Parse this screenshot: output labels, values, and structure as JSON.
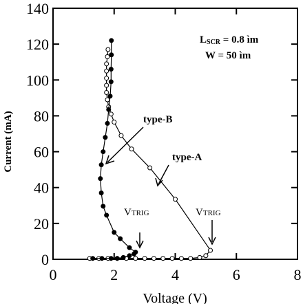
{
  "chart_data": {
    "type": "line",
    "xlabel": "Voltage (V)",
    "ylabel": "Current (mA)",
    "xlim": [
      0,
      8
    ],
    "xticks": [
      0,
      2,
      4,
      6,
      8
    ],
    "ylim": [
      0,
      140
    ],
    "yticks": [
      0,
      20,
      40,
      60,
      80,
      100,
      120,
      140
    ],
    "series": [
      {
        "name": "type-A",
        "color": "#000000",
        "marker": "open",
        "x": [
          1.2,
          1.5,
          1.8,
          2.1,
          2.4,
          2.7,
          3.0,
          3.3,
          3.6,
          3.9,
          4.2,
          4.5,
          4.8,
          5.0,
          5.15,
          4.0,
          3.17,
          2.57,
          2.23,
          2.0,
          1.9,
          1.82,
          1.78,
          1.75,
          1.75,
          1.75,
          1.75,
          1.75,
          1.78,
          1.8
        ],
        "values": [
          0.5,
          0.5,
          0.5,
          0.5,
          0.5,
          0.5,
          0.5,
          0.5,
          0.5,
          0.5,
          0.5,
          0.5,
          1,
          2,
          5,
          33.5,
          51,
          61.5,
          69,
          76.5,
          81,
          85,
          89,
          93,
          97,
          101,
          105,
          109,
          113,
          117
        ]
      },
      {
        "name": "type-B",
        "color": "#000000",
        "marker": "filled",
        "x": [
          1.3,
          1.6,
          1.9,
          2.1,
          2.3,
          2.5,
          2.65,
          2.7,
          2.5,
          2.2,
          2.0,
          1.75,
          1.64,
          1.58,
          1.55,
          1.58,
          1.64,
          1.71,
          1.78,
          1.82,
          1.87,
          1.9,
          1.9,
          1.91,
          1.91
        ],
        "values": [
          0.5,
          0.5,
          0.5,
          0.5,
          1,
          2,
          3,
          4,
          6.5,
          11.5,
          15,
          24.6,
          29.6,
          37,
          45,
          52.7,
          60,
          68,
          75.8,
          83.5,
          91,
          99,
          106,
          114,
          122
        ]
      }
    ],
    "annotations": [
      {
        "parts": [
          "L",
          "SCR",
          " = 0.8 ìm"
        ]
      },
      {
        "parts": [
          "W = 50 ìm"
        ]
      },
      {
        "parts": [
          "type-B"
        ]
      },
      {
        "parts": [
          "type-A"
        ]
      },
      {
        "parts": [
          "V",
          "TRIG"
        ]
      },
      {
        "parts": [
          "V",
          "TRIG"
        ]
      }
    ]
  }
}
